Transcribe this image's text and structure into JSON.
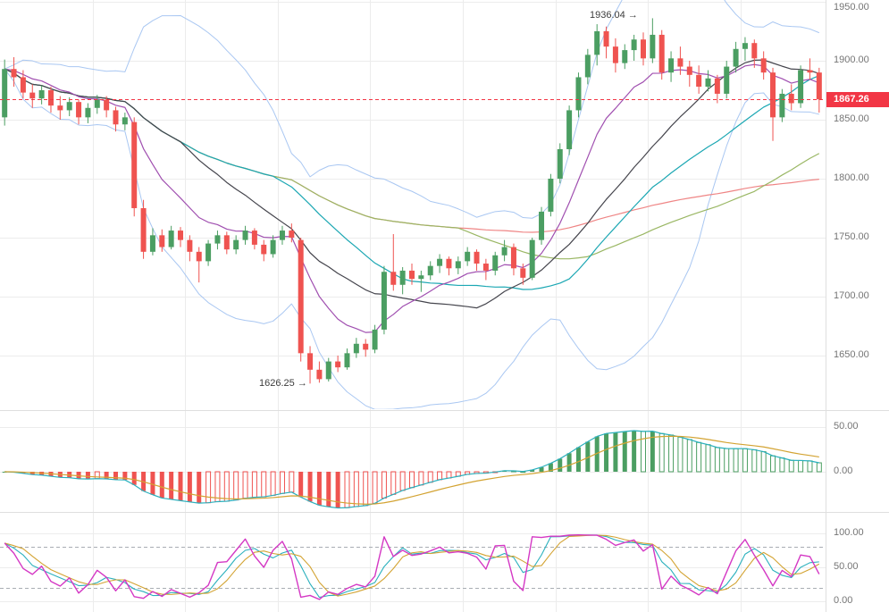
{
  "annotations": {
    "high_label": "1936.04 →",
    "low_label": "1626.25 →"
  },
  "last_price_label": "1867.26",
  "axis_labels": {
    "price": [
      "1950.00",
      "1900.00",
      "1850.00",
      "1800.00",
      "1750.00",
      "1700.00",
      "1650.00"
    ],
    "macd": [
      "50.00",
      "0.00"
    ],
    "stoch": [
      "100.00",
      "50.00",
      "0.00"
    ]
  },
  "colors": {
    "up": "#4b9e62",
    "down": "#ef5350",
    "last_price": "#f23645",
    "grid": "#ececec",
    "separator": "#dfdfdf",
    "axis_text": "#757575"
  },
  "chart_data": [
    {
      "type": "candlestick",
      "pane": "price",
      "title": "",
      "ylim": [
        1602,
        1951
      ],
      "y_ticks": [
        1950,
        1900,
        1850,
        1800,
        1750,
        1700,
        1650
      ],
      "grid": true,
      "last_price": 1867.26,
      "high_annotation": {
        "value": 1936.04,
        "candle_index": 70
      },
      "low_annotation": {
        "value": 1626.25,
        "candle_index": 33
      },
      "colors": {
        "up": "#4b9e62",
        "down": "#ef5350",
        "last_price_line": "#f23645"
      },
      "overlays": [
        {
          "name": "bollinger-bands",
          "type": "bbands",
          "period": 20,
          "stddev": 2,
          "color": "#a9c7f2"
        },
        {
          "name": "sma-100",
          "type": "sma",
          "period": 100,
          "color": "#ef8585"
        },
        {
          "name": "sma-50",
          "type": "sma",
          "period": 50,
          "color": "#9ab764"
        },
        {
          "name": "sma-30",
          "type": "sma",
          "period": 30,
          "color": "#1ba7b3"
        },
        {
          "name": "sma-20",
          "type": "sma",
          "period": 20,
          "color": "#45454d"
        },
        {
          "name": "ema-10",
          "type": "ema",
          "period": 10,
          "color": "#a04fb0"
        }
      ],
      "ohlc": [
        [
          1852,
          1901,
          1845,
          1893
        ],
        [
          1893,
          1903,
          1878,
          1886
        ],
        [
          1886,
          1892,
          1868,
          1873
        ],
        [
          1873,
          1880,
          1860,
          1868
        ],
        [
          1868,
          1879,
          1863,
          1875
        ],
        [
          1875,
          1878,
          1856,
          1862
        ],
        [
          1862,
          1870,
          1850,
          1858
        ],
        [
          1858,
          1869,
          1853,
          1865
        ],
        [
          1865,
          1867,
          1846,
          1852
        ],
        [
          1852,
          1864,
          1847,
          1860
        ],
        [
          1860,
          1871,
          1855,
          1867
        ],
        [
          1867,
          1870,
          1852,
          1858
        ],
        [
          1858,
          1861,
          1840,
          1846
        ],
        [
          1846,
          1856,
          1841,
          1852
        ],
        [
          1848,
          1852,
          1768,
          1775
        ],
        [
          1775,
          1782,
          1732,
          1738
        ],
        [
          1738,
          1758,
          1735,
          1752
        ],
        [
          1752,
          1757,
          1738,
          1742
        ],
        [
          1742,
          1760,
          1740,
          1756
        ],
        [
          1756,
          1759,
          1742,
          1748
        ],
        [
          1748,
          1752,
          1730,
          1738
        ],
        [
          1738,
          1742,
          1712,
          1730
        ],
        [
          1730,
          1748,
          1726,
          1745
        ],
        [
          1745,
          1756,
          1740,
          1752
        ],
        [
          1752,
          1755,
          1736,
          1740
        ],
        [
          1740,
          1752,
          1736,
          1748
        ],
        [
          1748,
          1760,
          1744,
          1756
        ],
        [
          1756,
          1758,
          1740,
          1744
        ],
        [
          1744,
          1748,
          1730,
          1736
        ],
        [
          1736,
          1752,
          1733,
          1748
        ],
        [
          1748,
          1760,
          1744,
          1756
        ],
        [
          1756,
          1762,
          1746,
          1750
        ],
        [
          1748,
          1750,
          1645,
          1652
        ],
        [
          1652,
          1658,
          1626.25,
          1638
        ],
        [
          1638,
          1645,
          1627,
          1630
        ],
        [
          1630,
          1648,
          1628,
          1645
        ],
        [
          1645,
          1650,
          1636,
          1640
        ],
        [
          1640,
          1656,
          1638,
          1652
        ],
        [
          1652,
          1665,
          1648,
          1660
        ],
        [
          1660,
          1664,
          1649,
          1655
        ],
        [
          1655,
          1676,
          1652,
          1672
        ],
        [
          1672,
          1726,
          1668,
          1721
        ],
        [
          1721,
          1753,
          1705,
          1710
        ],
        [
          1710,
          1725,
          1702,
          1722
        ],
        [
          1722,
          1728,
          1710,
          1715
        ],
        [
          1715,
          1722,
          1704,
          1718
        ],
        [
          1718,
          1730,
          1714,
          1726
        ],
        [
          1726,
          1736,
          1720,
          1732
        ],
        [
          1732,
          1734,
          1718,
          1724
        ],
        [
          1724,
          1734,
          1719,
          1730
        ],
        [
          1730,
          1742,
          1726,
          1738
        ],
        [
          1738,
          1740,
          1722,
          1728
        ],
        [
          1728,
          1732,
          1714,
          1722
        ],
        [
          1722,
          1738,
          1718,
          1735
        ],
        [
          1735,
          1748,
          1730,
          1742
        ],
        [
          1742,
          1745,
          1718,
          1724
        ],
        [
          1724,
          1728,
          1710,
          1716
        ],
        [
          1716,
          1750,
          1714,
          1748
        ],
        [
          1748,
          1776,
          1744,
          1772
        ],
        [
          1772,
          1804,
          1768,
          1800
        ],
        [
          1800,
          1830,
          1796,
          1825
        ],
        [
          1825,
          1862,
          1820,
          1858
        ],
        [
          1858,
          1890,
          1852,
          1886
        ],
        [
          1886,
          1910,
          1880,
          1905
        ],
        [
          1905,
          1931,
          1896,
          1925
        ],
        [
          1925,
          1929,
          1902,
          1912
        ],
        [
          1912,
          1919,
          1890,
          1898
        ],
        [
          1898,
          1914,
          1893,
          1909
        ],
        [
          1909,
          1922,
          1900,
          1918
        ],
        [
          1918,
          1924,
          1896,
          1902
        ],
        [
          1902,
          1936.04,
          1898,
          1922
        ],
        [
          1922,
          1926,
          1884,
          1890
        ],
        [
          1890,
          1908,
          1882,
          1902
        ],
        [
          1902,
          1912,
          1888,
          1895
        ],
        [
          1895,
          1900,
          1878,
          1888
        ],
        [
          1888,
          1896,
          1872,
          1878
        ],
        [
          1878,
          1892,
          1874,
          1885
        ],
        [
          1885,
          1888,
          1864,
          1872
        ],
        [
          1872,
          1900,
          1868,
          1895
        ],
        [
          1895,
          1916,
          1890,
          1910
        ],
        [
          1910,
          1920,
          1900,
          1915
        ],
        [
          1915,
          1918,
          1894,
          1902
        ],
        [
          1902,
          1908,
          1884,
          1890
        ],
        [
          1890,
          1894,
          1832,
          1852
        ],
        [
          1852,
          1876,
          1848,
          1872
        ],
        [
          1872,
          1880,
          1858,
          1864
        ],
        [
          1864,
          1896,
          1860,
          1892
        ],
        [
          1892,
          1902,
          1884,
          1890
        ],
        [
          1890,
          1894,
          1856,
          1867.26
        ]
      ]
    },
    {
      "type": "bar",
      "pane": "macd",
      "name": "MACD",
      "ylim": [
        -45,
        62
      ],
      "y_ticks": [
        50,
        0
      ],
      "derived_from": "ohlc closes of pane 'price'",
      "params": {
        "fast": 12,
        "slow": 26,
        "signal": 9
      },
      "colors": {
        "pos": "#4b9e62",
        "neg": "#ef5350",
        "macd_line": "#2ab0bd",
        "signal_line": "#d3a332"
      }
    },
    {
      "type": "line",
      "pane": "stochastic",
      "name": "Stochastic",
      "ylim": [
        0,
        100
      ],
      "y_ticks": [
        100,
        50,
        0
      ],
      "levels": [
        80,
        20
      ],
      "derived_from": "ohlc of pane 'price'",
      "params": {
        "k_period": 9,
        "smooth": 3,
        "d": 3
      },
      "colors": {
        "k_line": "#d438c4",
        "smooth_line": "#2ab0bd",
        "d_line": "#d3a332"
      }
    }
  ]
}
